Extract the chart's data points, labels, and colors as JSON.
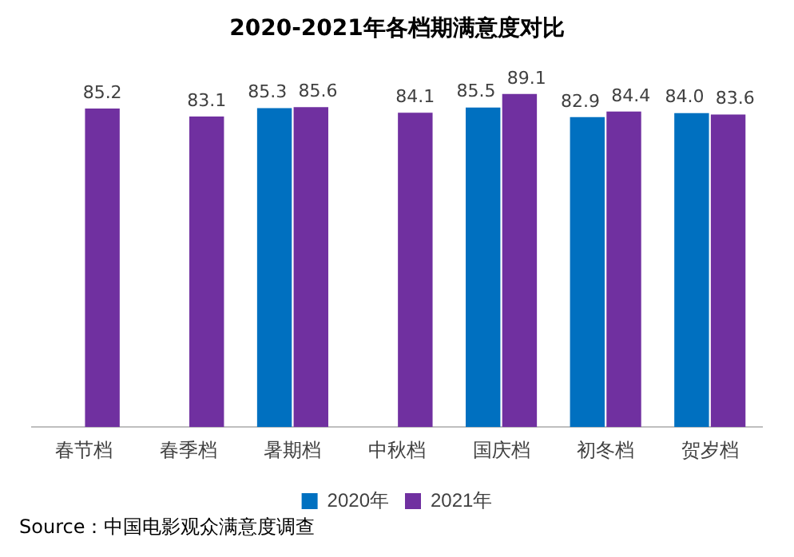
{
  "chart_data": {
    "type": "bar",
    "title": "2020-2021年各档期满意度对比",
    "categories": [
      "春节档",
      "春季档",
      "暑期档",
      "中秋档",
      "国庆档",
      "初冬档",
      "贺岁档"
    ],
    "series": [
      {
        "name": "2020年",
        "color": "#0070c0",
        "values": [
          null,
          null,
          85.3,
          null,
          85.5,
          82.9,
          84.0
        ],
        "value_labels": [
          null,
          null,
          "85.3",
          null,
          "85.5",
          "82.9",
          "84.0"
        ]
      },
      {
        "name": "2021年",
        "color": "#7030a0",
        "values": [
          85.2,
          83.1,
          85.6,
          84.1,
          89.1,
          84.4,
          83.6
        ],
        "value_labels": [
          "85.2",
          "83.1",
          "85.6",
          "84.1",
          "89.1",
          "84.4",
          "83.6"
        ]
      }
    ],
    "grid": false,
    "legend": "bottom",
    "annotations": [
      "Source：中国电影观众满意度调查"
    ]
  }
}
